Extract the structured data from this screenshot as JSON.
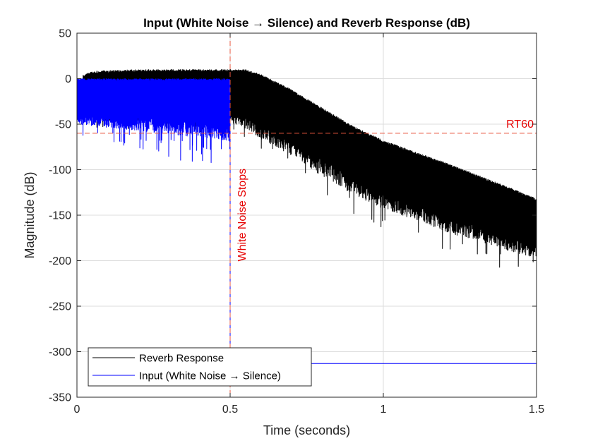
{
  "chart_data": {
    "type": "line",
    "title": "Input (White Noise → Silence) and Reverb Response (dB)",
    "xlabel": "Time (seconds)",
    "ylabel": "Magnitude (dB)",
    "xlim": [
      0,
      1.5
    ],
    "ylim": [
      -350,
      50
    ],
    "xticks": [
      0,
      0.5,
      1,
      1.5
    ],
    "xtick_labels": [
      "0",
      "0.5",
      "1",
      "1.5"
    ],
    "yticks": [
      50,
      0,
      -50,
      -100,
      -150,
      -200,
      -250,
      -300,
      -350
    ],
    "ytick_labels": [
      "50",
      "0",
      "-50",
      "-100",
      "-150",
      "-200",
      "-250",
      "-300",
      "-350"
    ],
    "grid": true,
    "legend": {
      "placement": "bottom-left"
    },
    "series": [
      {
        "name": "Reverb Response",
        "color": "#000000",
        "envelope": {
          "x": [
            0.02,
            0.05,
            0.1,
            0.2,
            0.3,
            0.4,
            0.5,
            0.55,
            0.6,
            0.7,
            0.8,
            0.9,
            1.0,
            1.1,
            1.2,
            1.3,
            1.4,
            1.5
          ],
          "upper": [
            4,
            8,
            9,
            10,
            10,
            10,
            10,
            10,
            5,
            -12,
            -32,
            -52,
            -68,
            -80,
            -92,
            -105,
            -118,
            -132
          ],
          "typical_lower": [
            -32,
            -35,
            -38,
            -38,
            -38,
            -38,
            -38,
            -42,
            -50,
            -68,
            -88,
            -108,
            -125,
            -138,
            -150,
            -160,
            -172,
            -182
          ],
          "min": [
            -55,
            -60,
            -62,
            -60,
            -58,
            -60,
            -62,
            -70,
            -85,
            -105,
            -130,
            -150,
            -165,
            -175,
            -190,
            -200,
            -210,
            -215
          ]
        }
      },
      {
        "name": "Input (White Noise → Silence)",
        "color": "#0000ff",
        "envelope": {
          "x": [
            0.0,
            0.5
          ],
          "upper": [
            0,
            0
          ],
          "typical_lower": [
            -40,
            -40
          ],
          "min": [
            -62,
            -103
          ]
        },
        "after_silence_level": -313
      }
    ],
    "annotations": [
      {
        "type": "vline",
        "x": 0.5,
        "color": "#e8553e",
        "style": "dashed",
        "label": "White Noise Stops"
      },
      {
        "type": "hline",
        "y": -60,
        "color": "#e8553e",
        "style": "dashed",
        "label": "RT60"
      }
    ]
  }
}
